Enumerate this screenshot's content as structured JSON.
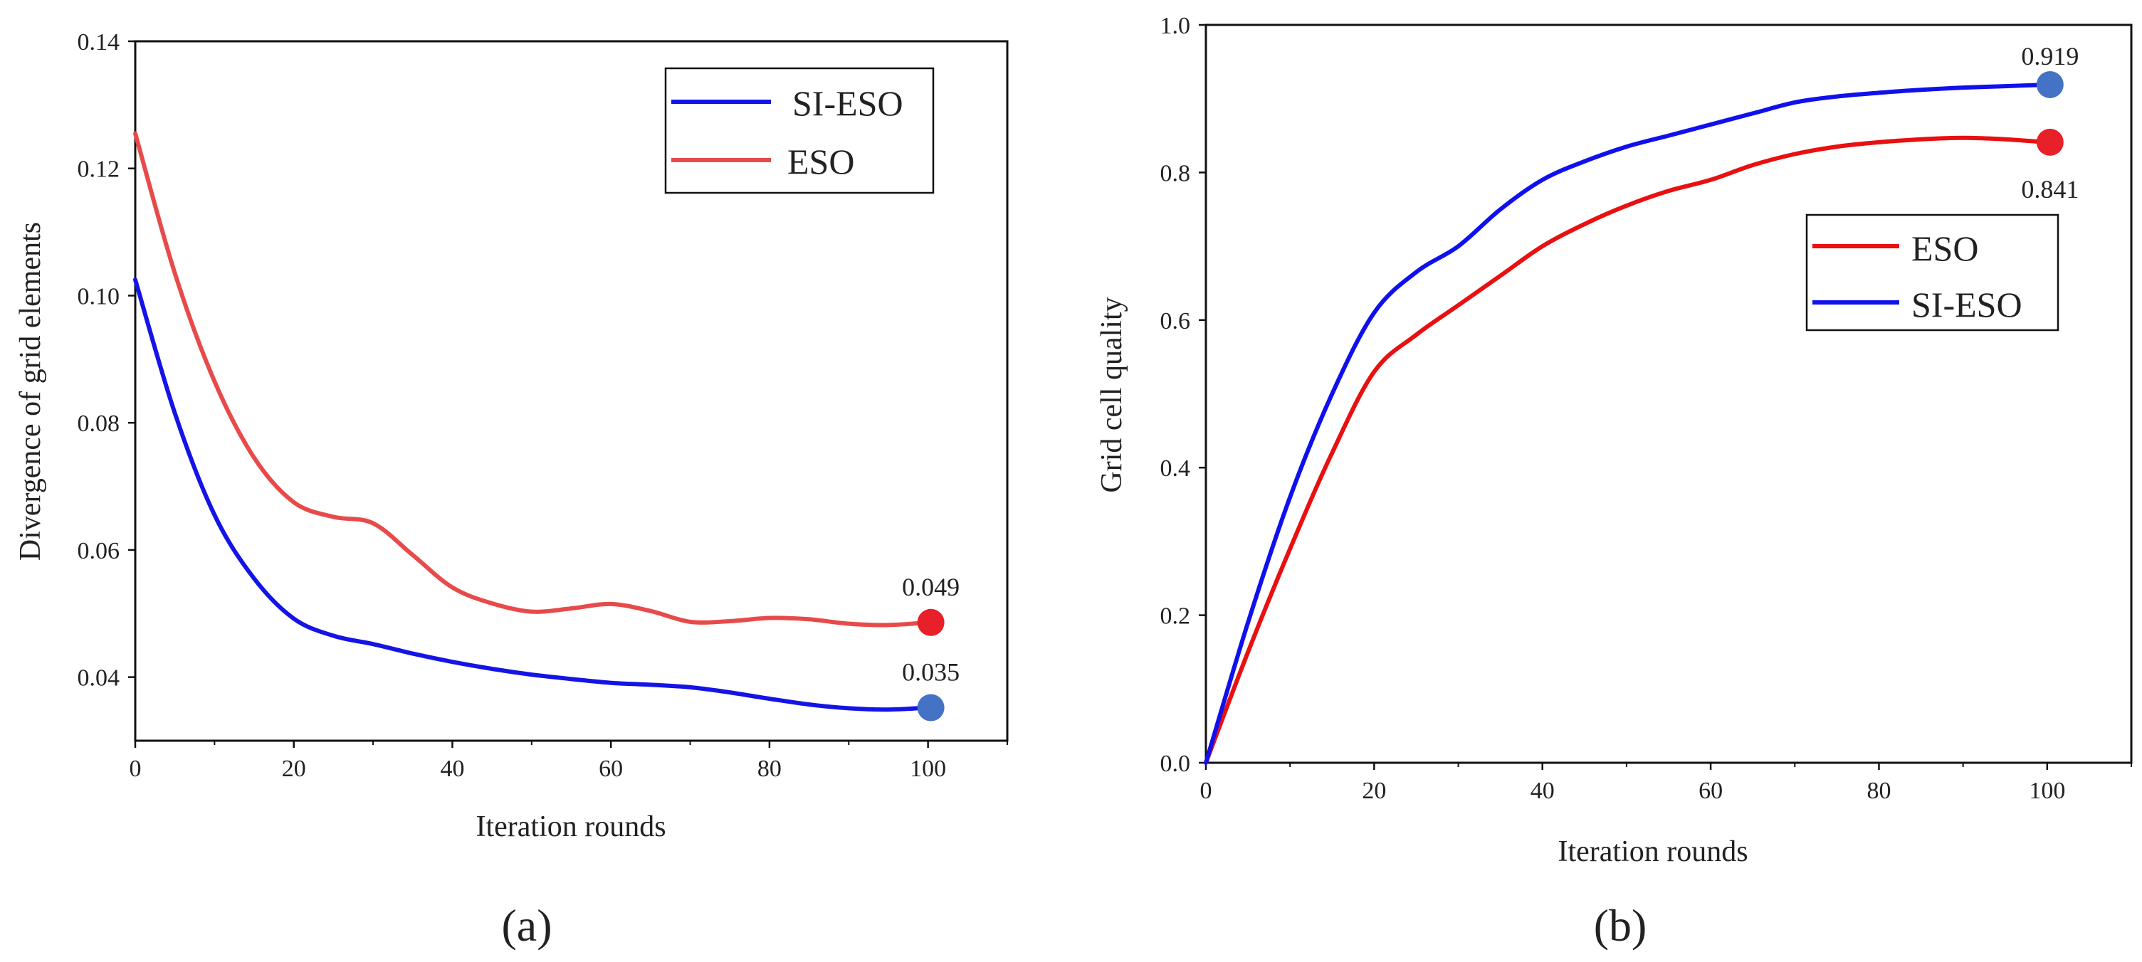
{
  "chart_data": [
    {
      "type": "line",
      "panel_label": "(a)",
      "xlabel": "Iteration rounds",
      "ylabel": "Divergence of grid elements",
      "xlim": [
        0,
        110
      ],
      "ylim": [
        0.03,
        0.14
      ],
      "xticks": [
        "0",
        "20",
        "40",
        "60",
        "80",
        "100"
      ],
      "yticks": [
        "0.04",
        "0.06",
        "0.08",
        "0.10",
        "0.12",
        "0.14"
      ],
      "legend_position": "top-right",
      "series": [
        {
          "name": "SI-ESO",
          "color": "#1414e6",
          "x": [
            0,
            5,
            10,
            15,
            20,
            25,
            30,
            35,
            40,
            45,
            50,
            55,
            60,
            65,
            70,
            75,
            80,
            85,
            90,
            95,
            100
          ],
          "y": [
            0.1025,
            0.0815,
            0.0655,
            0.0555,
            0.0492,
            0.0465,
            0.0452,
            0.0437,
            0.0424,
            0.0413,
            0.0404,
            0.0397,
            0.0391,
            0.0388,
            0.0384,
            0.0376,
            0.0366,
            0.0357,
            0.0351,
            0.0349,
            0.0352
          ],
          "end_value": "0.035",
          "end_marker_color": "#4472c4"
        },
        {
          "name": "ESO",
          "color": "#e84a4a",
          "x": [
            0,
            5,
            10,
            15,
            20,
            25,
            30,
            35,
            40,
            45,
            50,
            55,
            60,
            65,
            70,
            75,
            80,
            85,
            90,
            95,
            100
          ],
          "y": [
            0.1255,
            0.1035,
            0.0865,
            0.0745,
            0.0675,
            0.0652,
            0.0642,
            0.0592,
            0.0541,
            0.0516,
            0.0503,
            0.0508,
            0.0515,
            0.0504,
            0.0487,
            0.0488,
            0.0493,
            0.0491,
            0.0484,
            0.0482,
            0.0486
          ],
          "end_value": "0.049",
          "end_marker_color": "#e8202a"
        }
      ]
    },
    {
      "type": "line",
      "panel_label": "(b)",
      "xlabel": "Iteration rounds",
      "ylabel": "Grid cell quality",
      "xlim": [
        0,
        110
      ],
      "ylim": [
        0,
        1.0
      ],
      "xticks": [
        "0",
        "20",
        "40",
        "60",
        "80",
        "100"
      ],
      "yticks": [
        "0.0",
        "0.2",
        "0.4",
        "0.6",
        "0.8",
        "1.0"
      ],
      "legend_position": "right",
      "series": [
        {
          "name": "ESO",
          "color": "#e81010",
          "x": [
            0,
            5,
            10,
            15,
            20,
            25,
            30,
            35,
            40,
            45,
            50,
            55,
            60,
            65,
            70,
            75,
            80,
            85,
            90,
            95,
            100
          ],
          "y": [
            0.0,
            0.15,
            0.29,
            0.42,
            0.53,
            0.58,
            0.62,
            0.66,
            0.7,
            0.73,
            0.755,
            0.775,
            0.79,
            0.81,
            0.825,
            0.835,
            0.841,
            0.845,
            0.847,
            0.845,
            0.841
          ],
          "end_value": "0.841",
          "end_marker_color": "#e8202a"
        },
        {
          "name": "SI-ESO",
          "color": "#1010ee",
          "x": [
            0,
            5,
            10,
            15,
            20,
            25,
            30,
            35,
            40,
            45,
            50,
            55,
            60,
            65,
            70,
            75,
            80,
            85,
            90,
            95,
            100
          ],
          "y": [
            0.0,
            0.19,
            0.36,
            0.5,
            0.61,
            0.665,
            0.7,
            0.75,
            0.79,
            0.815,
            0.835,
            0.85,
            0.865,
            0.88,
            0.895,
            0.903,
            0.908,
            0.912,
            0.915,
            0.917,
            0.919
          ],
          "end_value": "0.919",
          "end_marker_color": "#4472c4"
        }
      ]
    }
  ]
}
